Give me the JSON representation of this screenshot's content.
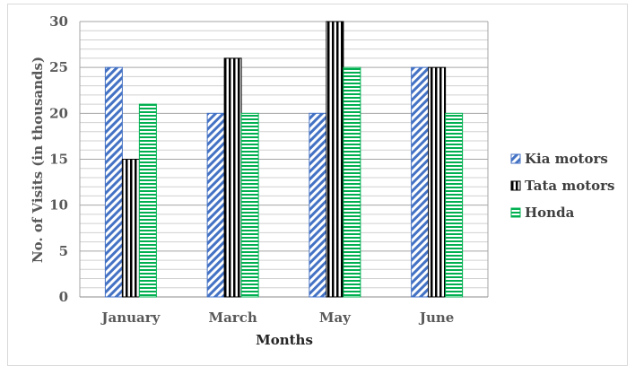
{
  "chart_data": {
    "type": "bar",
    "categories": [
      "January",
      "March",
      "May",
      "June"
    ],
    "series": [
      {
        "name": "Kia motors",
        "values": [
          25,
          20,
          20,
          25
        ],
        "color": "#4472c4",
        "pattern": "diagonal"
      },
      {
        "name": "Tata motors",
        "values": [
          15,
          26,
          30,
          25
        ],
        "color": "#000000",
        "pattern": "vertical"
      },
      {
        "name": "Honda",
        "values": [
          21,
          20,
          25,
          20
        ],
        "color": "#00b050",
        "pattern": "horizontal"
      }
    ],
    "xlabel": "Months",
    "ylabel": "No. of Visits (in thousands)",
    "ylim": [
      0,
      30
    ],
    "yticks": [
      0,
      5,
      10,
      15,
      20,
      25,
      30
    ],
    "grid": true,
    "legend_position": "right"
  }
}
